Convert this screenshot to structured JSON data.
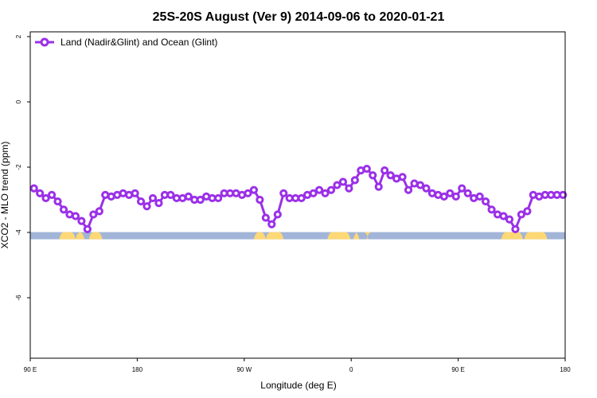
{
  "chart_data": {
    "type": "line",
    "title": "25S-20S August (Ver 9)   2014-09-06 to 2020-01-21",
    "xlabel": "Longitude (deg E)",
    "ylabel": "XCO2 - MLO trend (ppm)",
    "xlim": [
      90,
      450
    ],
    "ylim": [
      -8,
      2.2
    ],
    "x_ticks": [
      {
        "value": 90,
        "label": "90 E"
      },
      {
        "value": 162,
        "label": "180"
      },
      {
        "value": 234,
        "label": "90 W"
      },
      {
        "value": 306,
        "label": "0"
      },
      {
        "value": 378,
        "label": "90 E"
      },
      {
        "value": 450,
        "label": "180"
      }
    ],
    "y_ticks": [
      {
        "value": 2,
        "label": "2"
      },
      {
        "value": 0,
        "label": "0"
      },
      {
        "value": -2,
        "label": "-2"
      },
      {
        "value": -4,
        "label": "-4"
      },
      {
        "value": -6,
        "label": "-6"
      }
    ],
    "grid": false,
    "legend_position": "top-left",
    "series": [
      {
        "name": "Land (Nadir&Glint) and Ocean (Glint)",
        "color": "#9B30E8",
        "x": [
          92.5,
          96.5,
          100.5,
          104.5,
          108.5,
          112.5,
          116.5,
          120.5,
          124.5,
          128.5,
          132.5,
          136.5,
          140.5,
          144.5,
          148.5,
          152.5,
          156.5,
          160.5,
          164.5,
          168.5,
          172.5,
          176.5,
          180.5,
          184.5,
          188.5,
          192.5,
          196.5,
          200.5,
          204.5,
          208.5,
          212.5,
          216.5,
          220.5,
          224.5,
          228.5,
          232.5,
          236.5,
          240.5,
          244.5,
          248.5,
          252.5,
          256.5,
          260.5,
          264.5,
          268.5,
          272.5,
          276.5,
          280.5,
          284.5,
          288.5,
          292.5,
          296.5,
          300.5,
          304.5,
          308.5,
          312.5,
          316.5,
          320.5,
          324.5,
          328.5,
          332.5,
          336.5,
          340.5,
          344.5,
          348.5,
          352.5,
          356.5,
          360.5,
          364.5,
          368.5,
          372.5,
          376.5,
          380.5,
          384.5,
          388.5,
          392.5,
          396.5,
          400.5,
          404.5,
          408.5,
          412.5,
          416.5,
          420.5,
          424.5,
          428.5,
          432.5,
          436.5,
          440.5,
          444.5,
          448.5
        ],
        "values": [
          -2.65,
          -2.8,
          -2.95,
          -2.85,
          -3.05,
          -3.3,
          -3.45,
          -3.5,
          -3.65,
          -3.9,
          -3.45,
          -3.35,
          -2.85,
          -2.9,
          -2.85,
          -2.8,
          -2.85,
          -2.8,
          -3.05,
          -3.2,
          -2.95,
          -3.1,
          -2.85,
          -2.85,
          -2.95,
          -2.95,
          -2.9,
          -3.0,
          -3.0,
          -2.9,
          -2.95,
          -2.95,
          -2.8,
          -2.8,
          -2.8,
          -2.85,
          -2.8,
          -2.7,
          -3.0,
          -3.55,
          -3.75,
          -3.45,
          -2.8,
          -2.95,
          -2.95,
          -2.95,
          -2.85,
          -2.8,
          -2.7,
          -2.8,
          -2.7,
          -2.55,
          -2.45,
          -2.65,
          -2.4,
          -2.1,
          -2.05,
          -2.25,
          -2.6,
          -2.1,
          -2.25,
          -2.35,
          -2.3,
          -2.7,
          -2.5,
          -2.55,
          -2.65,
          -2.8,
          -2.85,
          -2.9,
          -2.8,
          -2.9,
          -2.65,
          -2.8,
          -2.95,
          -2.9,
          -3.05,
          -3.3,
          -3.45,
          -3.5,
          -3.6,
          -3.9,
          -3.45,
          -3.35,
          -2.85,
          -2.9,
          -2.85,
          -2.85,
          -2.85,
          -2.85
        ]
      }
    ],
    "geo_bar": {
      "y": -4.1,
      "ocean_color": "#A2B5D8",
      "land_color": "#FDD875",
      "land_ranges": [
        [
          109.5,
          120.5
        ],
        [
          120.5,
          126.5
        ],
        [
          129.5,
          138.5
        ],
        [
          240.5,
          248.5
        ],
        [
          248.5,
          260.5
        ],
        [
          290,
          305.5
        ],
        [
          307.5,
          311.5
        ],
        [
          316.5,
          317.5
        ],
        [
          407,
          421.5
        ],
        [
          422.5,
          438
        ]
      ]
    }
  }
}
